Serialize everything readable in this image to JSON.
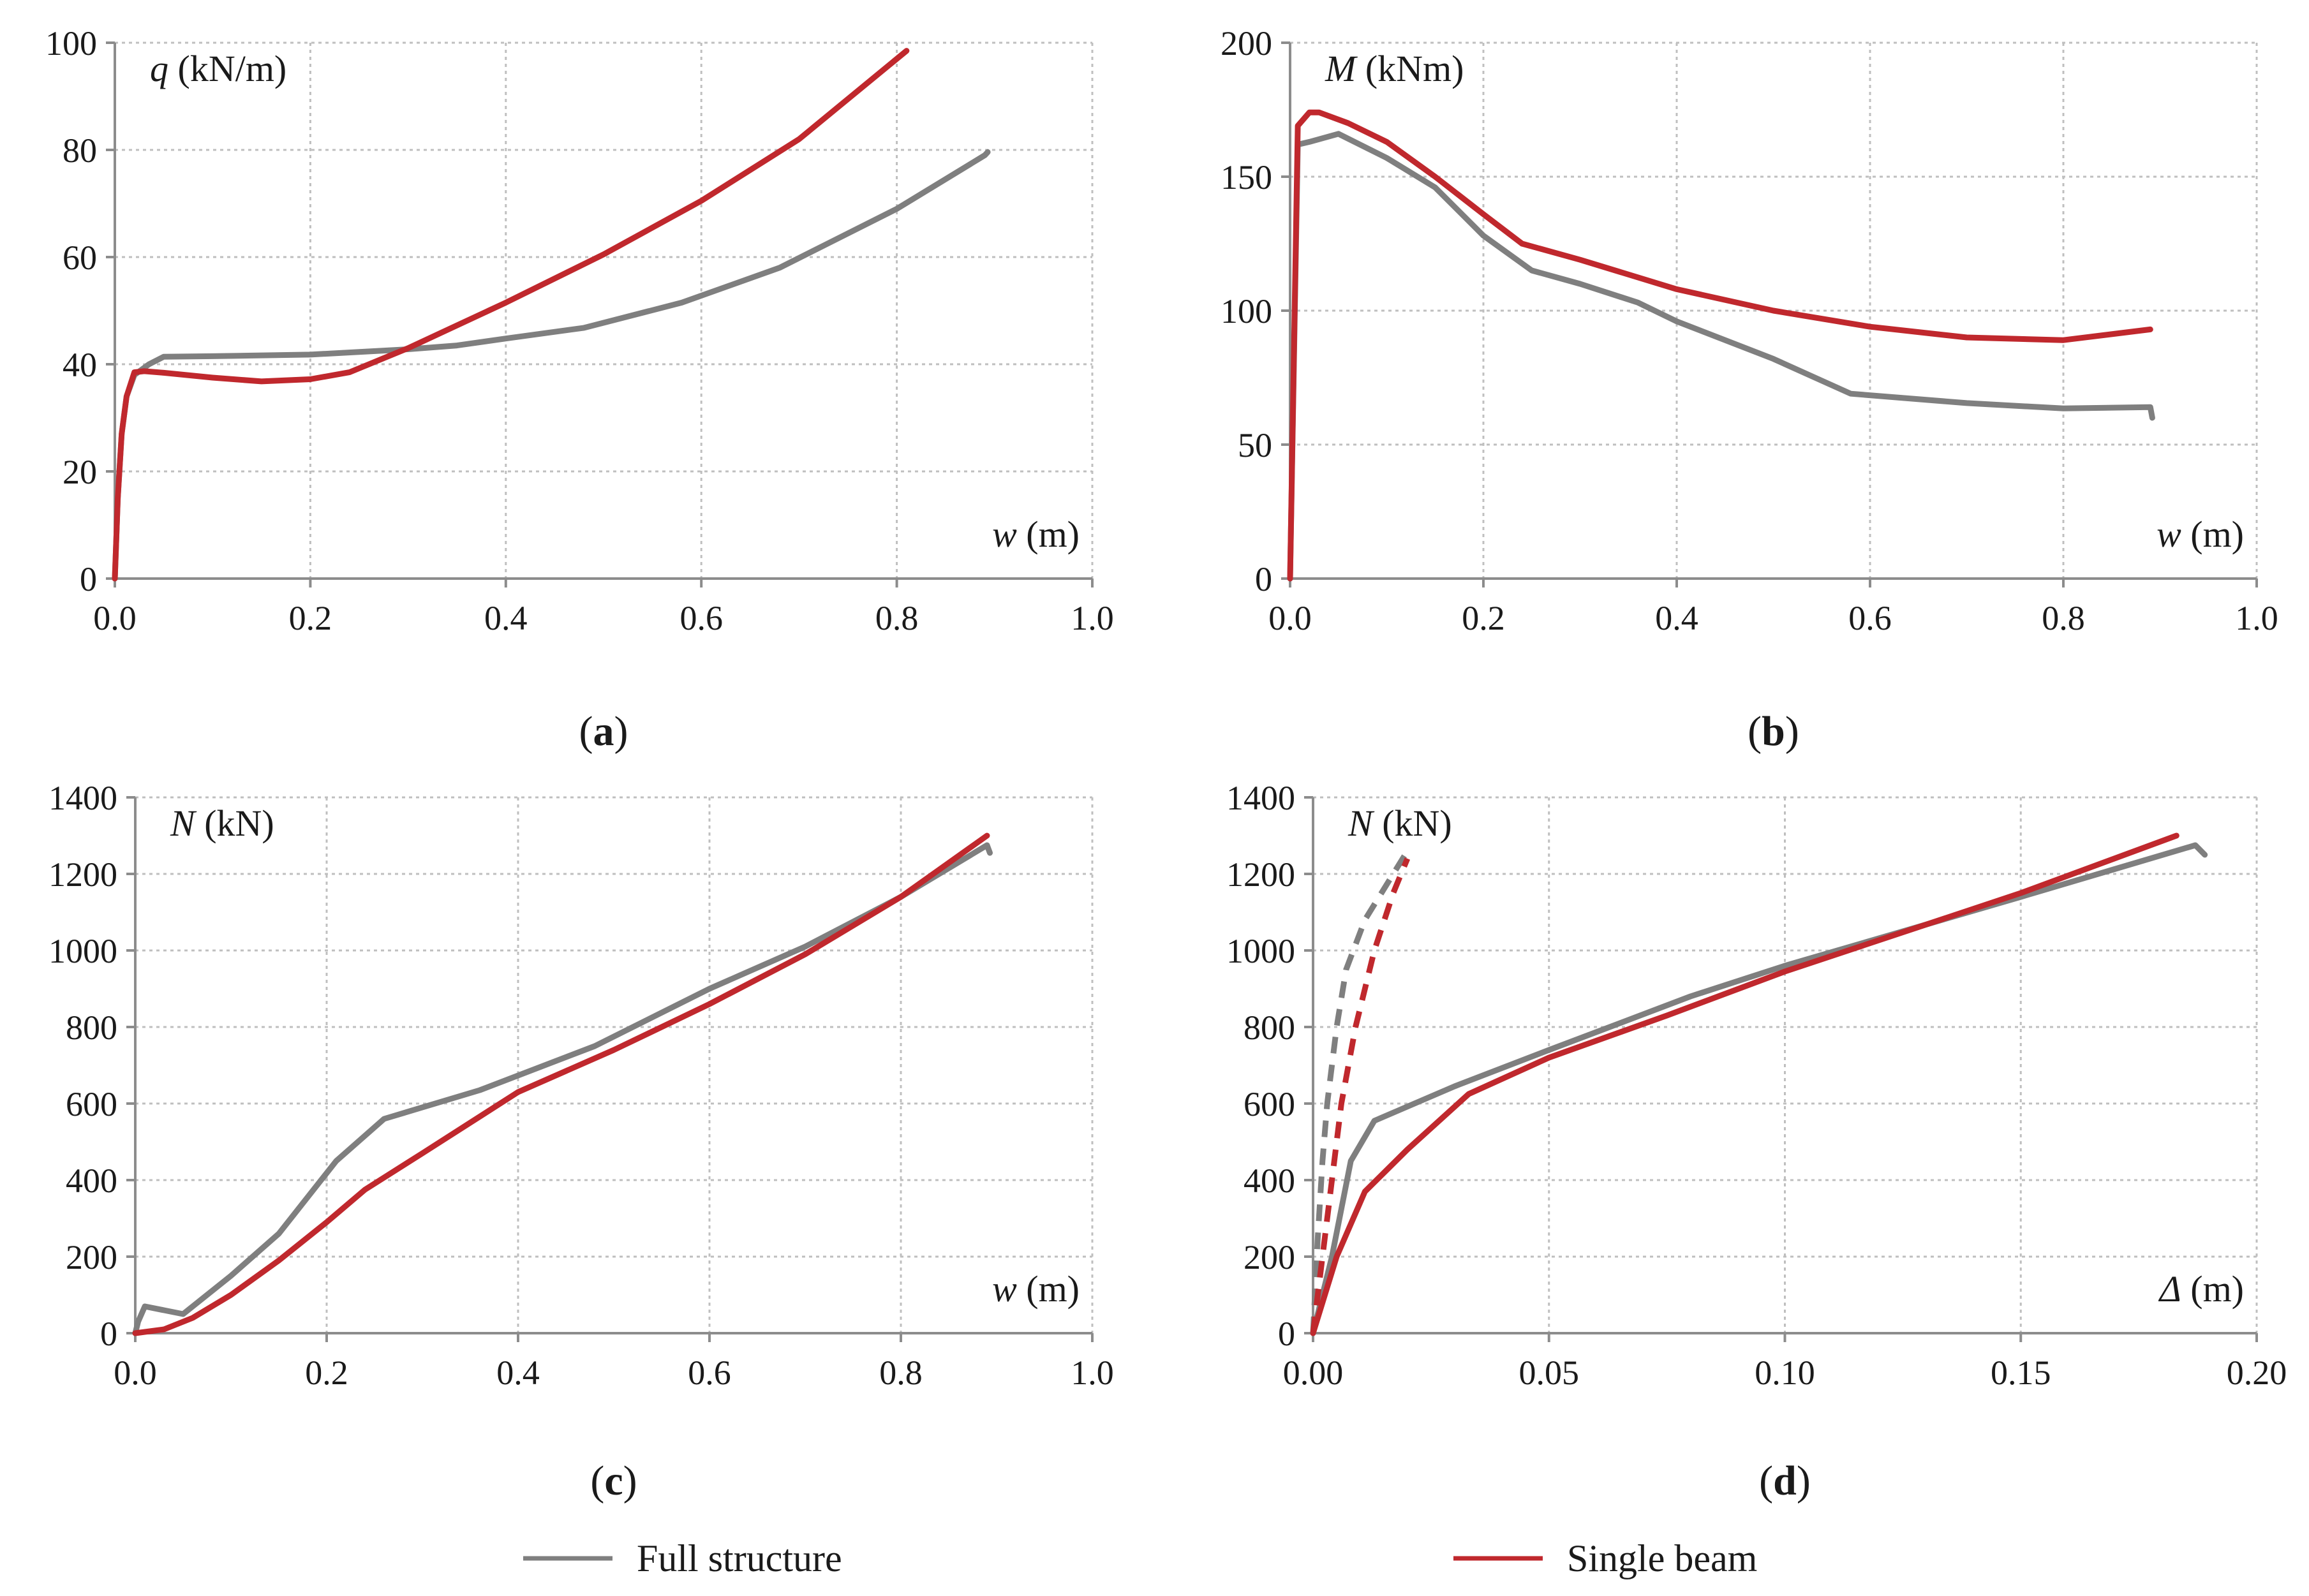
{
  "colors": {
    "full": "#7f7f7f",
    "single": "#c0282d",
    "grid": "#bfbfbf",
    "axis": "#8c8c8c"
  },
  "legend": [
    {
      "key": "full",
      "label": "Full structure"
    },
    {
      "key": "single",
      "label": "Single beam"
    }
  ],
  "chart_data": [
    {
      "id": "a",
      "type": "line",
      "caption": "a",
      "ylabel": {
        "var": "q",
        "unit": "(kN/m)"
      },
      "xlabel": {
        "var": "w",
        "unit": "(m)"
      },
      "xlim": [
        0,
        1.0
      ],
      "ylim": [
        0,
        100
      ],
      "xticks": [
        0,
        0.2,
        0.4,
        0.6,
        0.8,
        1.0
      ],
      "xtick_labels": [
        "0.0",
        "0.2",
        "0.4",
        "0.6",
        "0.8",
        "1.0"
      ],
      "yticks": [
        0,
        20,
        40,
        60,
        80,
        100
      ],
      "ytick_labels": [
        "0",
        "20",
        "40",
        "60",
        "80",
        "100"
      ],
      "series": [
        {
          "name": "Full structure",
          "key": "full",
          "dashed": false,
          "points": [
            [
              0,
              0
            ],
            [
              0.003,
              15
            ],
            [
              0.007,
              27
            ],
            [
              0.012,
              34
            ],
            [
              0.02,
              38
            ],
            [
              0.035,
              40
            ],
            [
              0.05,
              41.4
            ],
            [
              0.1,
              41.5
            ],
            [
              0.2,
              41.8
            ],
            [
              0.3,
              42.8
            ],
            [
              0.35,
              43.5
            ],
            [
              0.4,
              44.8
            ],
            [
              0.48,
              46.8
            ],
            [
              0.58,
              51.5
            ],
            [
              0.68,
              58
            ],
            [
              0.8,
              69
            ],
            [
              0.89,
              79
            ],
            [
              0.893,
              79.6
            ]
          ]
        },
        {
          "name": "Single beam",
          "key": "single",
          "dashed": false,
          "points": [
            [
              0,
              0
            ],
            [
              0.003,
              15
            ],
            [
              0.007,
              27
            ],
            [
              0.012,
              34
            ],
            [
              0.02,
              38.5
            ],
            [
              0.03,
              38.7
            ],
            [
              0.05,
              38.4
            ],
            [
              0.1,
              37.5
            ],
            [
              0.15,
              36.8
            ],
            [
              0.2,
              37.2
            ],
            [
              0.24,
              38.5
            ],
            [
              0.3,
              43
            ],
            [
              0.4,
              51.5
            ],
            [
              0.5,
              60.5
            ],
            [
              0.6,
              70.5
            ],
            [
              0.7,
              82
            ],
            [
              0.81,
              98.5
            ]
          ]
        }
      ]
    },
    {
      "id": "b",
      "type": "line",
      "caption": "b",
      "ylabel": {
        "var": "M",
        "unit": "(kNm)"
      },
      "xlabel": {
        "var": "w",
        "unit": "(m)"
      },
      "xlim": [
        0,
        1.0
      ],
      "ylim": [
        0,
        200
      ],
      "xticks": [
        0,
        0.2,
        0.4,
        0.6,
        0.8,
        1.0
      ],
      "xtick_labels": [
        "0.0",
        "0.2",
        "0.4",
        "0.6",
        "0.8",
        "1.0"
      ],
      "yticks": [
        0,
        50,
        100,
        150,
        200
      ],
      "ytick_labels": [
        "0",
        "50",
        "100",
        "150",
        "200"
      ],
      "series": [
        {
          "name": "Full structure",
          "key": "full",
          "dashed": false,
          "points": [
            [
              0,
              0
            ],
            [
              0.008,
              162
            ],
            [
              0.02,
              163
            ],
            [
              0.05,
              166
            ],
            [
              0.1,
              157
            ],
            [
              0.15,
              146
            ],
            [
              0.2,
              128
            ],
            [
              0.25,
              115
            ],
            [
              0.3,
              110
            ],
            [
              0.36,
              103
            ],
            [
              0.4,
              96
            ],
            [
              0.5,
              82
            ],
            [
              0.58,
              69
            ],
            [
              0.7,
              65.5
            ],
            [
              0.8,
              63.5
            ],
            [
              0.89,
              64
            ],
            [
              0.892,
              60
            ]
          ]
        },
        {
          "name": "Single beam",
          "key": "single",
          "dashed": false,
          "points": [
            [
              0,
              0
            ],
            [
              0.008,
              169
            ],
            [
              0.02,
              174
            ],
            [
              0.03,
              174
            ],
            [
              0.06,
              170
            ],
            [
              0.1,
              163
            ],
            [
              0.15,
              150
            ],
            [
              0.2,
              136
            ],
            [
              0.24,
              125
            ],
            [
              0.3,
              119
            ],
            [
              0.4,
              108
            ],
            [
              0.5,
              100
            ],
            [
              0.6,
              94
            ],
            [
              0.7,
              90
            ],
            [
              0.8,
              89
            ],
            [
              0.89,
              93
            ]
          ]
        }
      ]
    },
    {
      "id": "c",
      "type": "line",
      "caption": "c",
      "ylabel": {
        "var": "N",
        "unit": "(kN)"
      },
      "xlabel": {
        "var": "w",
        "unit": "(m)"
      },
      "xlim": [
        0,
        1.0
      ],
      "ylim": [
        0,
        1400
      ],
      "xticks": [
        0,
        0.2,
        0.4,
        0.6,
        0.8,
        1.0
      ],
      "xtick_labels": [
        "0.0",
        "0.2",
        "0.4",
        "0.6",
        "0.8",
        "1.0"
      ],
      "yticks": [
        0,
        200,
        400,
        600,
        800,
        1000,
        1200,
        1400
      ],
      "ytick_labels": [
        "0",
        "200",
        "400",
        "600",
        "800",
        "1000",
        "1200",
        "1400"
      ],
      "series": [
        {
          "name": "Full structure",
          "key": "full",
          "dashed": false,
          "points": [
            [
              0,
              0
            ],
            [
              0.003,
              30
            ],
            [
              0.01,
              70
            ],
            [
              0.03,
              60
            ],
            [
              0.05,
              50
            ],
            [
              0.1,
              150
            ],
            [
              0.15,
              260
            ],
            [
              0.21,
              450
            ],
            [
              0.26,
              560
            ],
            [
              0.36,
              635
            ],
            [
              0.48,
              750
            ],
            [
              0.6,
              900
            ],
            [
              0.7,
              1010
            ],
            [
              0.8,
              1140
            ],
            [
              0.89,
              1275
            ],
            [
              0.893,
              1255
            ]
          ]
        },
        {
          "name": "Single beam",
          "key": "single",
          "dashed": false,
          "points": [
            [
              0,
              0
            ],
            [
              0.03,
              10
            ],
            [
              0.06,
              40
            ],
            [
              0.1,
              100
            ],
            [
              0.15,
              190
            ],
            [
              0.2,
              290
            ],
            [
              0.24,
              375
            ],
            [
              0.3,
              470
            ],
            [
              0.4,
              630
            ],
            [
              0.5,
              740
            ],
            [
              0.6,
              860
            ],
            [
              0.7,
              990
            ],
            [
              0.8,
              1140
            ],
            [
              0.89,
              1300
            ]
          ]
        }
      ]
    },
    {
      "id": "d",
      "type": "line",
      "caption": "d",
      "ylabel": {
        "var": "N",
        "unit": "(kN)"
      },
      "xlabel": {
        "var": "Δ",
        "unit": "(m)"
      },
      "xlim": [
        0,
        0.2
      ],
      "ylim": [
        0,
        1400
      ],
      "xticks": [
        0,
        0.05,
        0.1,
        0.15,
        0.2
      ],
      "xtick_labels": [
        "0.00",
        "0.05",
        "0.10",
        "0.15",
        "0.20"
      ],
      "yticks": [
        0,
        200,
        400,
        600,
        800,
        1000,
        1200,
        1400
      ],
      "ytick_labels": [
        "0",
        "200",
        "400",
        "600",
        "800",
        "1000",
        "1200",
        "1400"
      ],
      "series": [
        {
          "name": "Full structure",
          "key": "full",
          "dashed": false,
          "points": [
            [
              0,
              0
            ],
            [
              0.004,
              200
            ],
            [
              0.008,
              450
            ],
            [
              0.013,
              555
            ],
            [
              0.03,
              645
            ],
            [
              0.05,
              740
            ],
            [
              0.08,
              880
            ],
            [
              0.1,
              960
            ],
            [
              0.15,
              1140
            ],
            [
              0.187,
              1275
            ],
            [
              0.189,
              1250
            ]
          ]
        },
        {
          "name": "Single beam",
          "key": "single",
          "dashed": false,
          "points": [
            [
              0,
              0
            ],
            [
              0.005,
              200
            ],
            [
              0.011,
              370
            ],
            [
              0.02,
              480
            ],
            [
              0.033,
              625
            ],
            [
              0.05,
              720
            ],
            [
              0.075,
              830
            ],
            [
              0.1,
              945
            ],
            [
              0.15,
              1150
            ],
            [
              0.183,
              1300
            ]
          ]
        },
        {
          "name": "Full structure (dashed)",
          "key": "full",
          "dashed": true,
          "points": [
            [
              0,
              0
            ],
            [
              0.001,
              250
            ],
            [
              0.002,
              450
            ],
            [
              0.003,
              600
            ],
            [
              0.005,
              800
            ],
            [
              0.007,
              950
            ],
            [
              0.011,
              1080
            ],
            [
              0.016,
              1180
            ],
            [
              0.02,
              1260
            ]
          ]
        },
        {
          "name": "Single beam (dashed)",
          "key": "single",
          "dashed": true,
          "points": [
            [
              0,
              0
            ],
            [
              0.002,
              200
            ],
            [
              0.004,
              400
            ],
            [
              0.006,
              600
            ],
            [
              0.009,
              800
            ],
            [
              0.013,
              1000
            ],
            [
              0.017,
              1150
            ],
            [
              0.02,
              1240
            ]
          ]
        }
      ]
    }
  ]
}
